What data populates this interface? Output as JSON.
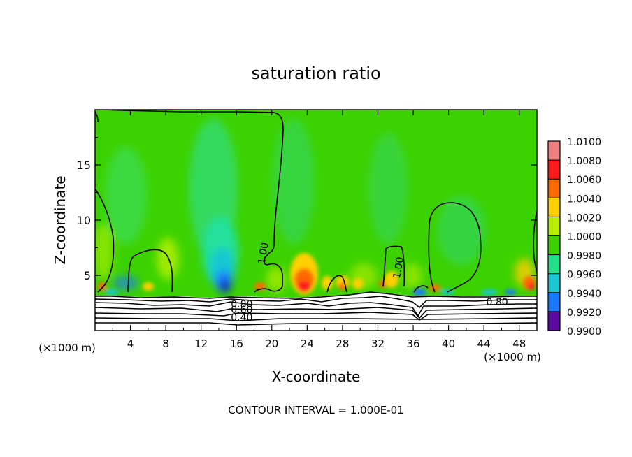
{
  "chart_data": {
    "type": "heatmap",
    "title": "saturation ratio",
    "xlabel": "X-coordinate",
    "ylabel": "Z-coordinate",
    "x_unit_label": "(×1000 m)",
    "x_unit_label_right": "(×1000 m)",
    "xlim": [
      0,
      50
    ],
    "ylim": [
      0,
      20
    ],
    "x_ticks": [
      4,
      8,
      12,
      16,
      20,
      24,
      28,
      32,
      36,
      40,
      44,
      48
    ],
    "x_tick_labels": [
      "4",
      "8",
      "12",
      "16",
      "20",
      "24",
      "28",
      "32",
      "36",
      "40",
      "44",
      "48"
    ],
    "y_ticks": [
      5,
      10,
      15
    ],
    "y_tick_labels": [
      "5",
      "10",
      "15"
    ],
    "colorbar": {
      "levels": [
        "1.0100",
        "1.0080",
        "1.0060",
        "1.0040",
        "1.0020",
        "1.0000",
        "0.9980",
        "0.9960",
        "0.9940",
        "0.9920",
        "0.9900"
      ],
      "colors": [
        "#f28080",
        "#ff1a1a",
        "#ff6a00",
        "#ffd000",
        "#b8f000",
        "#3cd200",
        "#24e08c",
        "#19c8d2",
        "#1a78ff",
        "#0b14c8",
        "#5a0aa0"
      ]
    },
    "contour_labels": [
      {
        "text": "1.00",
        "x": 19.0,
        "z": 7.0
      },
      {
        "text": "1.00",
        "x": 34.3,
        "z": 5.7
      },
      {
        "text": "0.80",
        "x": 16.6,
        "z": 2.4
      },
      {
        "text": "0.60",
        "x": 16.6,
        "z": 1.9
      },
      {
        "text": "0.40",
        "x": 16.6,
        "z": 1.2
      },
      {
        "text": "0.80",
        "x": 45.5,
        "z": 2.6
      }
    ],
    "contour_interval_text": "CONTOUR INTERVAL = 1.000E-01"
  }
}
